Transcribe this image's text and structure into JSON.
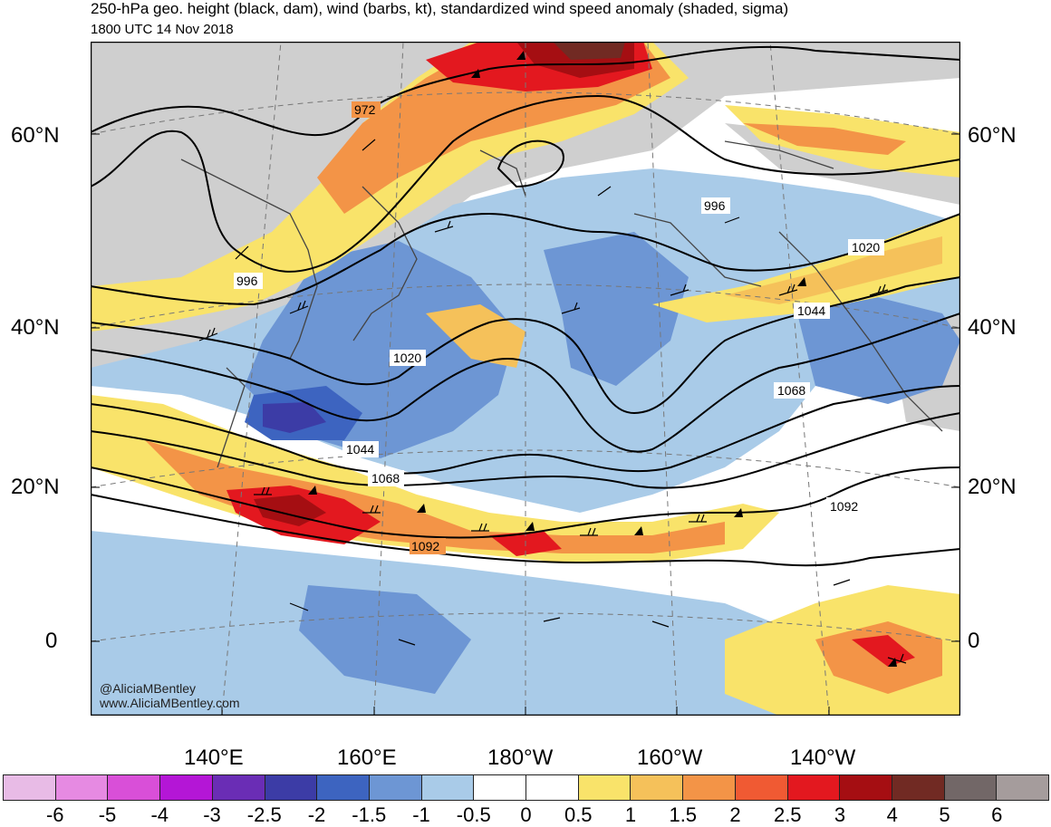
{
  "title": "250-hPa geo. height (black, dam), wind (barbs, kt), standardized wind speed anomaly (shaded, sigma)",
  "subtitle": "1800 UTC 14 Nov 2018",
  "lat_labels": [
    "60°N",
    "40°N",
    "20°N",
    "0"
  ],
  "lon_labels": [
    "140°E",
    "160°E",
    "180°W",
    "160°W",
    "140°W"
  ],
  "contour_labels": [
    "972",
    "996",
    "996",
    "1020",
    "1020",
    "1044",
    "1044",
    "1068",
    "1068",
    "1092",
    "1092"
  ],
  "credits": [
    "@AliciaMBentley",
    "www.AliciaMBentley.com"
  ],
  "colorbar": {
    "colors": [
      "#e8bbe6",
      "#e68ae2",
      "#d94fd8",
      "#b416d6",
      "#6a2db5",
      "#3c3ca6",
      "#3d64c0",
      "#6d96d4",
      "#a9cbe8",
      "#ffffff",
      "#ffffff",
      "#f9e36a",
      "#f5c15a",
      "#f39447",
      "#f05a33",
      "#e3181f",
      "#a50e12",
      "#712a23",
      "#726767",
      "#a59c9c"
    ],
    "labels": [
      "-6",
      "-5",
      "-4",
      "-3",
      "-2.5",
      "-2",
      "-1.5",
      "-1",
      "-0.5",
      "0",
      "0.5",
      "1",
      "1.5",
      "2",
      "2.5",
      "3",
      "4",
      "5",
      "6"
    ]
  }
}
